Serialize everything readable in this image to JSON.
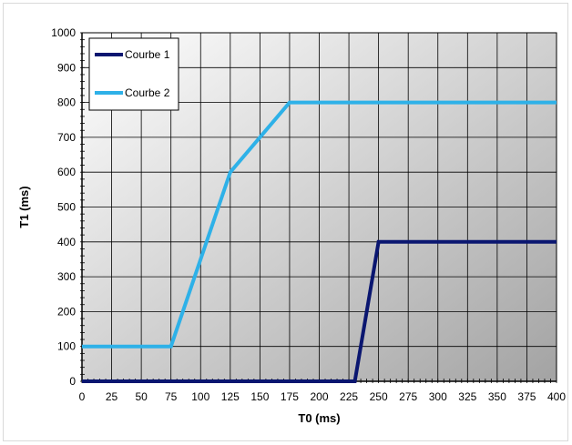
{
  "chart_data": {
    "type": "line",
    "title": "",
    "xlabel": "T0 (ms)",
    "ylabel": "T1 (ms)",
    "xlim": [
      0,
      400
    ],
    "ylim": [
      0,
      1000
    ],
    "x_ticks": [
      0,
      25,
      50,
      75,
      100,
      125,
      150,
      175,
      200,
      225,
      250,
      275,
      300,
      325,
      350,
      375,
      400
    ],
    "y_ticks": [
      0,
      100,
      200,
      300,
      400,
      500,
      600,
      700,
      800,
      900,
      1000
    ],
    "x_minor_step": 5,
    "y_minor_step": 20,
    "grid": true,
    "legend_position": "top-left",
    "series": [
      {
        "name": "Courbe 1",
        "color": "#0a1670",
        "points": [
          [
            0,
            0
          ],
          [
            230,
            0
          ],
          [
            250,
            400
          ],
          [
            400,
            400
          ]
        ]
      },
      {
        "name": "Courbe 2",
        "color": "#2eb1e8",
        "points": [
          [
            0,
            100
          ],
          [
            75,
            100
          ],
          [
            125,
            600
          ],
          [
            175,
            800
          ],
          [
            400,
            800
          ]
        ]
      }
    ]
  }
}
